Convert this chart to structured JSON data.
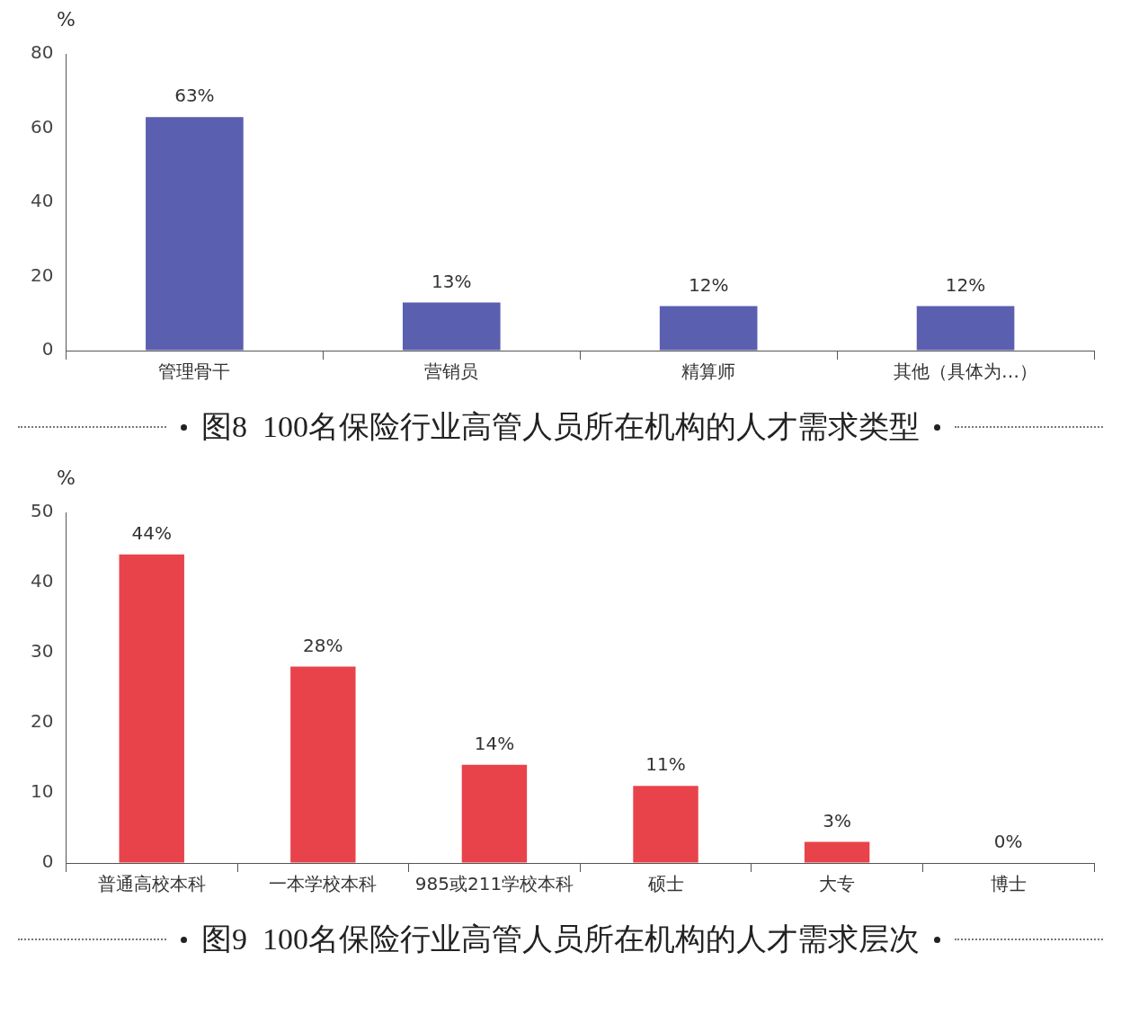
{
  "chart_data": [
    {
      "type": "bar",
      "title": "图8  100名保险行业高管人员所在机构的人才需求类型",
      "ylabel": "%",
      "categories": [
        "管理骨干",
        "营销员",
        "精算师",
        "其他（具体为…）"
      ],
      "values": [
        63,
        13,
        12,
        12
      ],
      "color": "#5a5fb0",
      "value_labels": [
        "63%",
        "13%",
        "12%",
        "12%"
      ],
      "ylim": [
        0,
        80
      ],
      "yticks": [
        0,
        20,
        40,
        60,
        80
      ],
      "grid": false,
      "legend": false
    },
    {
      "type": "bar",
      "title": "图9  100名保险行业高管人员所在机构的人才需求层次",
      "ylabel": "%",
      "categories": [
        "普通高校本科",
        "一本学校本科",
        "985或211学校本科",
        "硕士",
        "大专",
        "博士"
      ],
      "values": [
        44,
        28,
        14,
        11,
        3,
        0
      ],
      "color": "#e8434a",
      "value_labels": [
        "44%",
        "28%",
        "14%",
        "11%",
        "3%",
        "0%"
      ],
      "ylim": [
        0,
        50
      ],
      "yticks": [
        0,
        10,
        20,
        30,
        40,
        50
      ],
      "grid": false,
      "legend": false
    }
  ]
}
